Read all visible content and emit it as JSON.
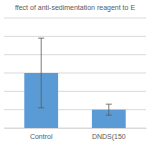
{
  "chart_data": {
    "type": "bar",
    "title": "ffect of anti-sedimentation reagent to E",
    "categories": [
      "Control",
      "DNDS(150"
    ],
    "values": [
      3.0,
      1.0
    ],
    "errors": [
      1.9,
      0.3
    ],
    "color": "#5b9bd5",
    "ylim": [
      0,
      6
    ],
    "yticks": [
      0,
      1,
      2,
      3,
      4,
      5,
      6
    ],
    "grid": true,
    "tick_labels": "x"
  }
}
